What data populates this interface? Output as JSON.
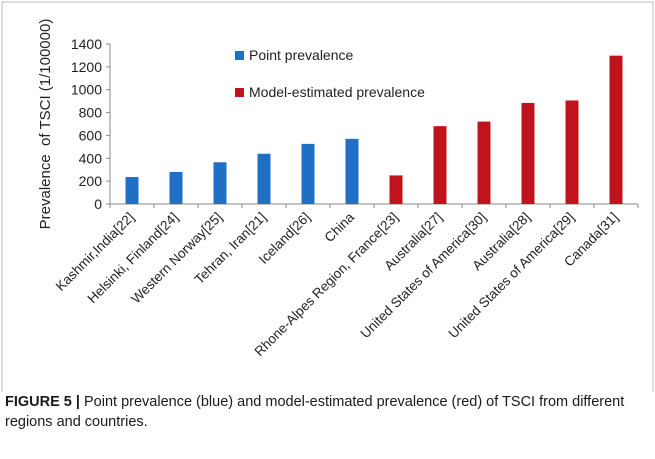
{
  "chart_data": {
    "type": "bar",
    "ylabel": "Prevalence  of TSCI (1/100000)",
    "ylim": [
      0,
      1400
    ],
    "yticks": [
      0,
      200,
      400,
      600,
      800,
      1000,
      1200,
      1400
    ],
    "categories": [
      "Kashmir,India[22]",
      "Helsinki, Finland[24]",
      "Western Norway[25]",
      "Tehran, Iran[21]",
      "Iceland[26]",
      "China",
      "Rhone-Alpes Region, France[23]",
      "Australia[27]",
      "United States of America[30]",
      "Australia[28]",
      "United States of America[29]",
      "Canada[31]"
    ],
    "series": [
      {
        "name": "Point prevalence",
        "color": "#1f6fc5",
        "values": [
          236,
          280,
          365,
          440,
          526,
          570,
          null,
          null,
          null,
          null,
          null,
          null
        ]
      },
      {
        "name": "Model-estimated prevalence",
        "color": "#c0141c",
        "values": [
          null,
          null,
          null,
          null,
          null,
          null,
          250,
          681,
          721,
          884,
          906,
          1298
        ]
      }
    ],
    "legend": "top-left inside plot",
    "grid": false
  },
  "caption": {
    "label": "FIGURE 5 |",
    "text": " Point prevalence (blue) and model-estimated prevalence (red) of TSCI from different regions and countries."
  }
}
